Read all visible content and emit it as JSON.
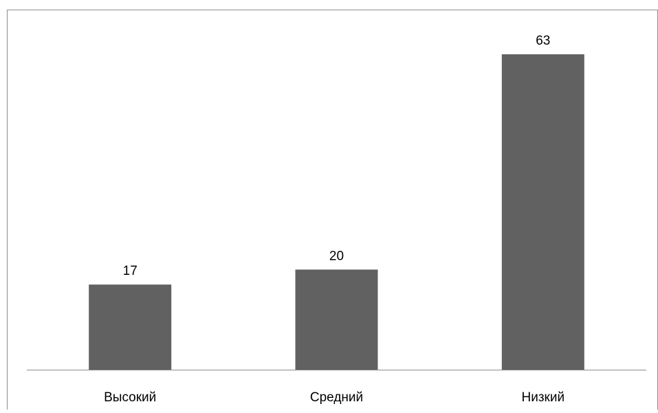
{
  "colors": {
    "bar": "#616161",
    "axis": "#8c8c8c",
    "border": "#8c8c8c",
    "text": "#000000",
    "background": "#ffffff"
  },
  "chart_data": {
    "type": "bar",
    "categories": [
      "Высокий",
      "Средний",
      "Низкий"
    ],
    "values": [
      17,
      20,
      63
    ],
    "data_labels": [
      "17",
      "20",
      "63"
    ],
    "title": "",
    "xlabel": "",
    "ylabel": "",
    "ylim": [
      0,
      70
    ],
    "grid": false,
    "legend": "none",
    "y_axis_visible": false
  }
}
